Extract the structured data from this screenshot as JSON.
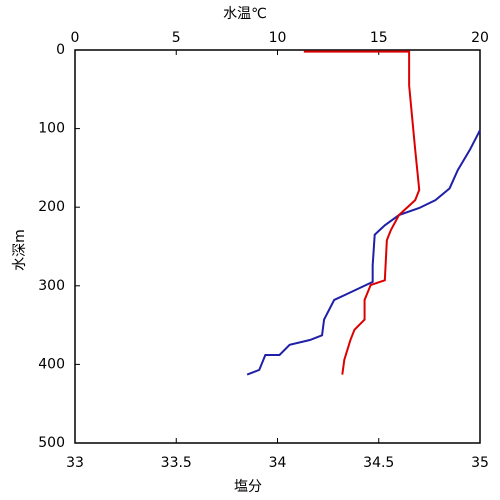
{
  "chart_data": {
    "type": "line",
    "xlabel": "塩分",
    "x2label": "水温℃",
    "ylabel": "水深m",
    "xlim": [
      33,
      35
    ],
    "xticks": [
      33,
      33.5,
      34,
      34.5,
      35
    ],
    "x2lim": [
      0,
      20
    ],
    "x2ticks": [
      0,
      5,
      10,
      15,
      20
    ],
    "ylim": [
      0,
      500
    ],
    "yticks": [
      0,
      100,
      200,
      300,
      400,
      500
    ],
    "y_inverted": true,
    "xlabel_color": "#cc0000",
    "x2label_color": "#1f1fa8",
    "series": [
      {
        "color": "#1f1fa8",
        "axis": "x2",
        "x": [
          8.5,
          9.1,
          9.4,
          10.1,
          10.6,
          11.6,
          12.2,
          12.3,
          12.8,
          13.3,
          14.7,
          14.7,
          14.8,
          15.3,
          16.0,
          17.0,
          17.8,
          18.5,
          18.9,
          19.5,
          20.0
        ],
        "values": [
          413,
          407,
          388,
          388,
          375,
          369,
          363,
          343,
          318,
          312,
          295,
          274,
          235,
          223,
          210,
          201,
          191,
          176,
          153,
          127,
          102
        ]
      },
      {
        "color": "#dd0000",
        "axis": "x",
        "x": [
          34.13,
          34.65,
          34.65,
          34.68,
          34.7,
          34.68,
          34.6,
          34.56,
          34.54,
          34.53,
          34.46,
          34.43,
          34.43,
          34.38,
          34.36,
          34.33,
          34.32
        ],
        "values": [
          2,
          2,
          45,
          127,
          178,
          191,
          210,
          229,
          242,
          293,
          299,
          318,
          343,
          356,
          369,
          394,
          413
        ]
      }
    ]
  }
}
